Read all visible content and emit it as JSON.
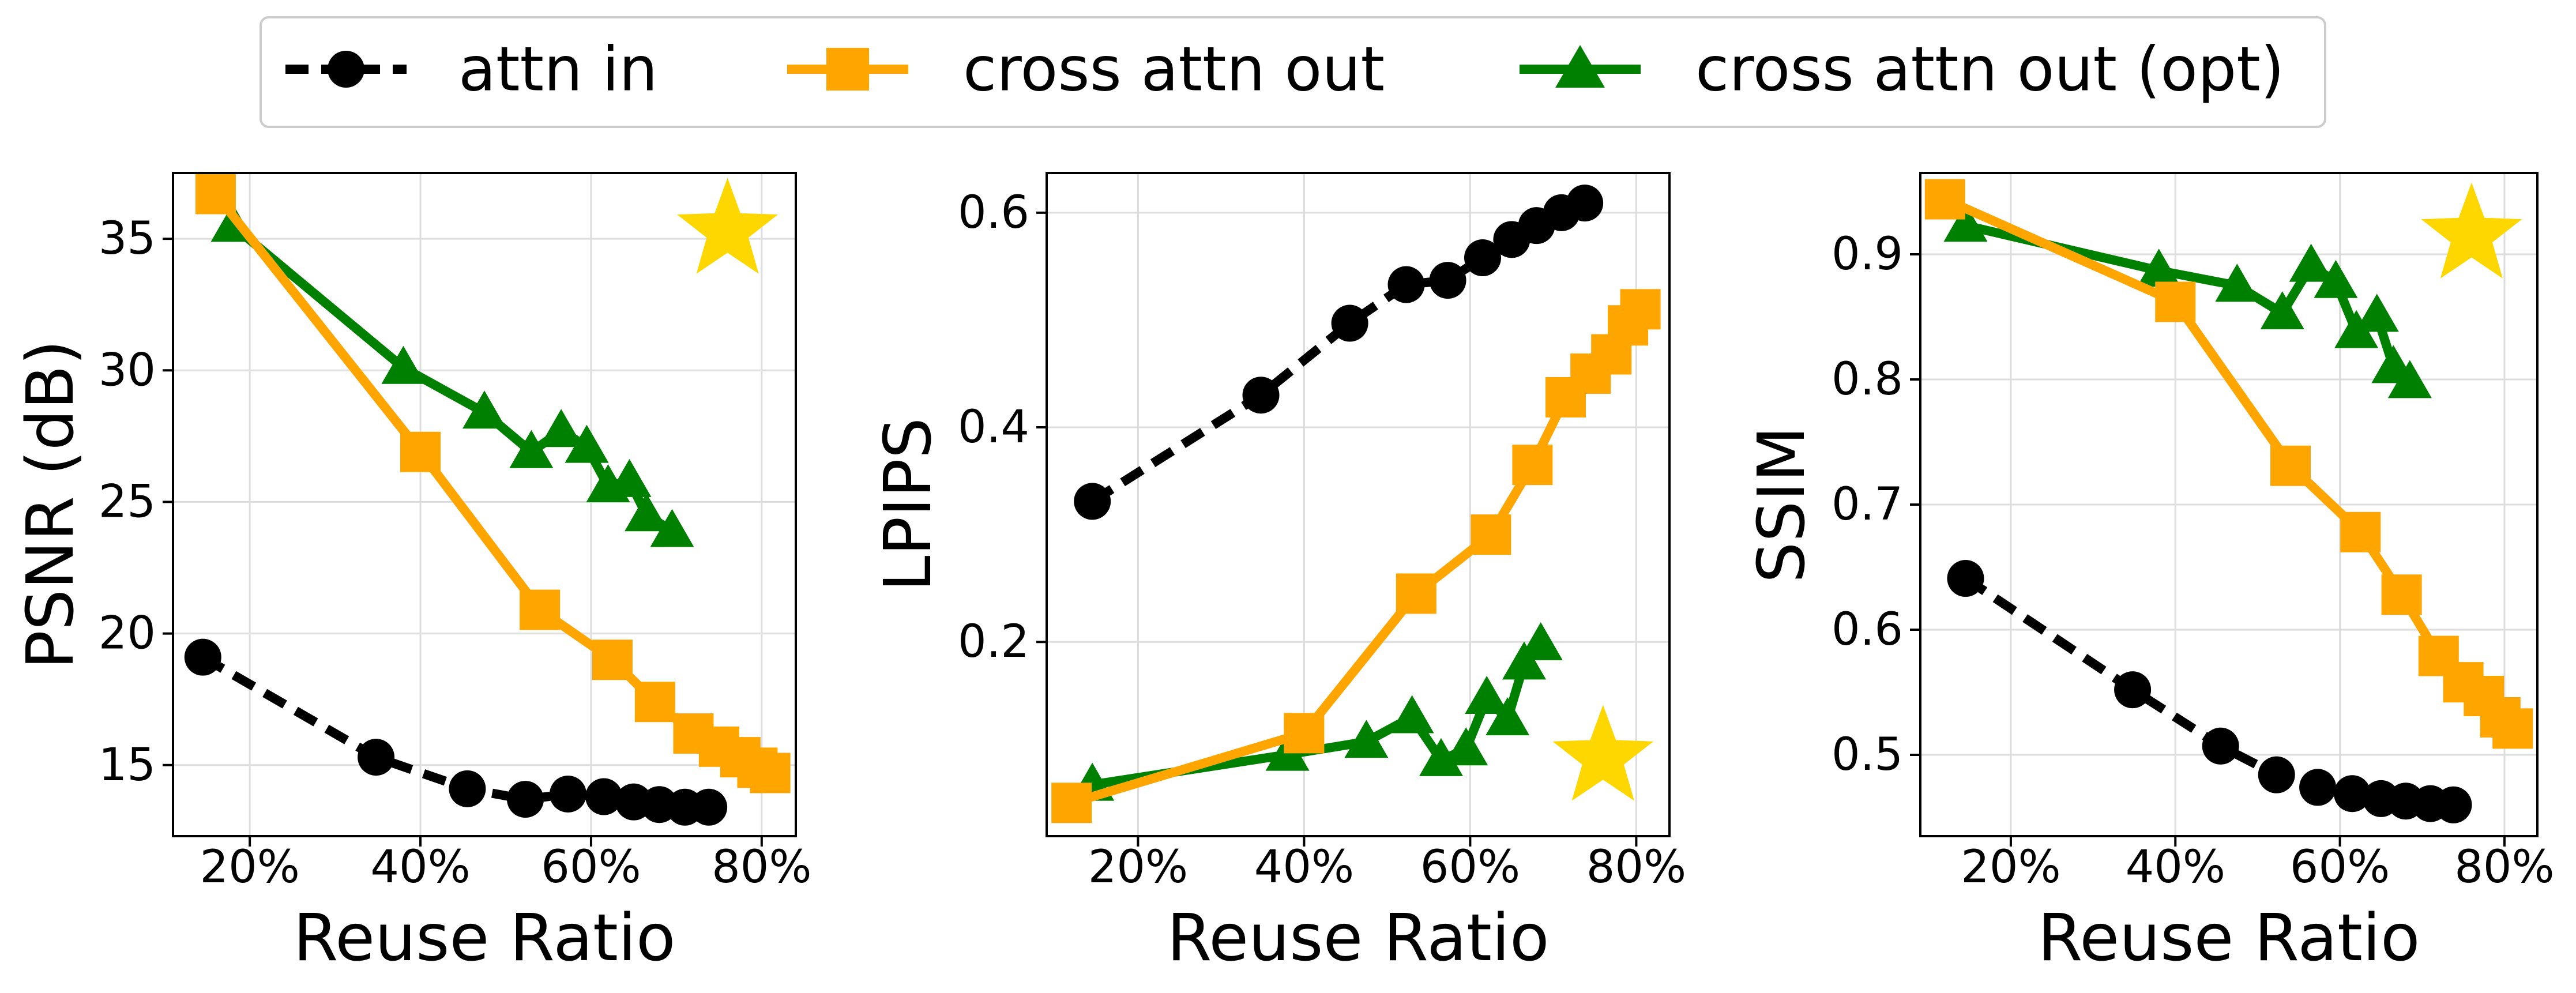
{
  "legend": {
    "entries": [
      {
        "label": "attn in",
        "color": "#000000",
        "marker": "circle",
        "dashed": true
      },
      {
        "label": "cross attn out",
        "color": "#FFA500",
        "marker": "square",
        "dashed": false
      },
      {
        "label": "cross attn out (opt)",
        "color": "#008000",
        "marker": "triangle",
        "dashed": false
      }
    ],
    "placement": "top-center"
  },
  "colors": {
    "attn_in": "#000000",
    "cross_attn_out": "#FFA500",
    "cross_attn_out_opt": "#008000",
    "star": "#FFD700",
    "grid": "#dddddd"
  },
  "chart_data": [
    {
      "type": "line",
      "title": "",
      "xlabel": "Reuse Ratio",
      "ylabel": "PSNR (dB)",
      "xlim": [
        11,
        84
      ],
      "ylim": [
        12.3,
        37.5
      ],
      "xticks": [
        20,
        40,
        60,
        80
      ],
      "xtick_labels": [
        "20%",
        "40%",
        "60%",
        "80%"
      ],
      "yticks": [
        15,
        20,
        25,
        30,
        35
      ],
      "ytick_labels": [
        "15",
        "20",
        "25",
        "30",
        "35"
      ],
      "grid": true,
      "star": {
        "x": 76,
        "y": 35.3,
        "label": "ideal"
      },
      "series": [
        {
          "name": "attn in",
          "x": [
            14.5,
            34.8,
            45.5,
            52.3,
            57.3,
            61.5,
            65.0,
            68.0,
            71.0,
            73.8
          ],
          "y": [
            19.1,
            15.3,
            14.1,
            13.7,
            13.9,
            13.8,
            13.6,
            13.5,
            13.4,
            13.4
          ]
        },
        {
          "name": "cross attn out",
          "x": [
            16.0,
            40.0,
            54.0,
            62.5,
            67.5,
            72.0,
            75.0,
            77.5,
            79.5,
            81.0
          ],
          "y": [
            36.7,
            26.9,
            20.9,
            19.0,
            17.4,
            16.2,
            15.7,
            15.3,
            14.9,
            14.7
          ]
        },
        {
          "name": "cross attn out (opt)",
          "x": [
            18.0,
            38.0,
            47.5,
            53.0,
            56.5,
            59.5,
            62.0,
            64.5,
            66.5,
            69.5
          ],
          "y": [
            35.5,
            30.1,
            28.4,
            26.9,
            27.7,
            27.1,
            25.6,
            25.8,
            24.5,
            23.9
          ]
        }
      ]
    },
    {
      "type": "line",
      "title": "",
      "xlabel": "Reuse Ratio",
      "ylabel": "LPIPS",
      "xlim": [
        9,
        84
      ],
      "ylim": [
        0.019,
        0.637
      ],
      "xticks": [
        20,
        40,
        60,
        80
      ],
      "xtick_labels": [
        "20%",
        "40%",
        "60%",
        "80%"
      ],
      "yticks": [
        0.2,
        0.4,
        0.6
      ],
      "ytick_labels": [
        "0.2",
        "0.4",
        "0.6"
      ],
      "grid": true,
      "star": {
        "x": 76,
        "y": 0.092,
        "label": "ideal"
      },
      "series": [
        {
          "name": "attn in",
          "x": [
            14.5,
            34.8,
            45.5,
            52.3,
            57.3,
            61.5,
            65.0,
            68.0,
            71.0,
            73.8
          ],
          "y": [
            0.331,
            0.43,
            0.497,
            0.533,
            0.537,
            0.558,
            0.575,
            0.588,
            0.6,
            0.609
          ]
        },
        {
          "name": "cross attn out",
          "x": [
            12.0,
            40.0,
            53.5,
            62.5,
            67.5,
            71.5,
            74.5,
            77.0,
            79.0,
            80.5
          ],
          "y": [
            0.05,
            0.115,
            0.245,
            0.3,
            0.365,
            0.428,
            0.45,
            0.468,
            0.495,
            0.51
          ]
        },
        {
          "name": "cross attn out (opt)",
          "x": [
            14.5,
            38.0,
            47.5,
            53.0,
            56.5,
            59.5,
            62.0,
            64.5,
            66.5,
            68.5
          ],
          "y": [
            0.067,
            0.095,
            0.107,
            0.13,
            0.09,
            0.1,
            0.148,
            0.128,
            0.18,
            0.198
          ]
        }
      ]
    },
    {
      "type": "line",
      "title": "",
      "xlabel": "Reuse Ratio",
      "ylabel": "SSIM",
      "xlim": [
        9,
        84
      ],
      "ylim": [
        0.435,
        0.965
      ],
      "xticks": [
        20,
        40,
        60,
        80
      ],
      "xtick_labels": [
        "20%",
        "40%",
        "60%",
        "80%"
      ],
      "yticks": [
        0.5,
        0.6,
        0.7,
        0.8,
        0.9
      ],
      "ytick_labels": [
        "0.5",
        "0.6",
        "0.7",
        "0.8",
        "0.9"
      ],
      "grid": true,
      "star": {
        "x": 76,
        "y": 0.915,
        "label": "ideal"
      },
      "series": [
        {
          "name": "attn in",
          "x": [
            14.5,
            34.8,
            45.5,
            52.3,
            57.3,
            61.5,
            65.0,
            68.0,
            71.0,
            73.8
          ],
          "y": [
            0.641,
            0.552,
            0.507,
            0.484,
            0.474,
            0.469,
            0.465,
            0.463,
            0.461,
            0.46
          ]
        },
        {
          "name": "cross attn out",
          "x": [
            12.0,
            40.0,
            54.0,
            62.5,
            67.5,
            72.0,
            75.0,
            77.5,
            79.5,
            81.0
          ],
          "y": [
            0.944,
            0.862,
            0.731,
            0.678,
            0.628,
            0.579,
            0.558,
            0.547,
            0.53,
            0.521
          ]
        },
        {
          "name": "cross attn out (opt)",
          "x": [
            14.5,
            38.0,
            47.5,
            53.0,
            56.5,
            59.5,
            62.0,
            64.5,
            66.5,
            68.5
          ],
          "y": [
            0.923,
            0.887,
            0.875,
            0.853,
            0.891,
            0.878,
            0.838,
            0.851,
            0.81,
            0.798
          ]
        }
      ]
    }
  ]
}
